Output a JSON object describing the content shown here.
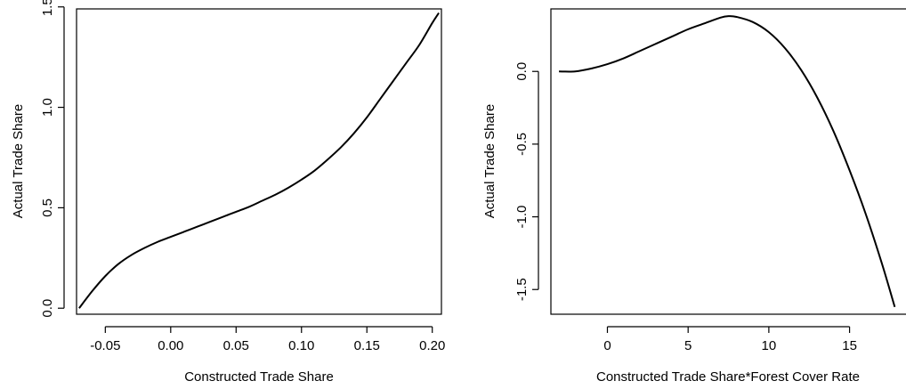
{
  "chart_data": [
    {
      "type": "line",
      "xlabel": "Constructed Trade Share",
      "ylabel": "Actual Trade Share",
      "xlim": [
        -0.072,
        0.207
      ],
      "ylim": [
        -0.03,
        1.49
      ],
      "xticks": [
        -0.05,
        0.0,
        0.05,
        0.1,
        0.15,
        0.2
      ],
      "xtick_labels": [
        "-0.05",
        "0.00",
        "0.05",
        "0.10",
        "0.15",
        "0.20"
      ],
      "yticks": [
        0.0,
        0.5,
        1.0,
        1.5
      ],
      "ytick_labels": [
        "0.0",
        "0.5",
        "1.0",
        "1.5"
      ],
      "grid": false,
      "series": [
        {
          "x": [
            -0.07,
            -0.06,
            -0.05,
            -0.04,
            -0.03,
            -0.02,
            -0.01,
            0.0,
            0.01,
            0.02,
            0.03,
            0.04,
            0.05,
            0.06,
            0.07,
            0.08,
            0.09,
            0.1,
            0.11,
            0.12,
            0.13,
            0.14,
            0.15,
            0.16,
            0.17,
            0.18,
            0.19,
            0.2,
            0.205
          ],
          "y": [
            0.0,
            0.085,
            0.16,
            0.22,
            0.265,
            0.3,
            0.33,
            0.355,
            0.38,
            0.405,
            0.43,
            0.455,
            0.48,
            0.505,
            0.535,
            0.565,
            0.6,
            0.64,
            0.685,
            0.74,
            0.8,
            0.87,
            0.95,
            1.04,
            1.13,
            1.22,
            1.31,
            1.42,
            1.47
          ]
        }
      ]
    },
    {
      "type": "line",
      "xlabel": "Constructed Trade Share*Forest Cover Rate",
      "ylabel": "Actual Trade Share",
      "xlim": [
        -3.5,
        18.0
      ],
      "ylim": [
        -1.67,
        0.43
      ],
      "xticks": [
        0,
        5,
        10,
        15
      ],
      "xtick_labels": [
        "0",
        "5",
        "10",
        "15"
      ],
      "yticks": [
        -1.5,
        -1.0,
        -0.5,
        0.0
      ],
      "ytick_labels": [
        "-1.5",
        "-1.0",
        "-0.5",
        "0.0"
      ],
      "grid": false,
      "series": [
        {
          "x": [
            -3,
            -2,
            -1,
            0,
            1,
            2,
            3,
            4,
            5,
            6,
            7,
            7.5,
            8,
            9,
            10,
            11,
            12,
            13,
            14,
            15,
            16,
            17,
            17.8
          ],
          "y": [
            0.0,
            0.0,
            0.02,
            0.05,
            0.09,
            0.14,
            0.19,
            0.24,
            0.29,
            0.33,
            0.37,
            0.38,
            0.375,
            0.34,
            0.27,
            0.16,
            0.01,
            -0.18,
            -0.41,
            -0.68,
            -0.98,
            -1.32,
            -1.62
          ]
        }
      ]
    }
  ]
}
